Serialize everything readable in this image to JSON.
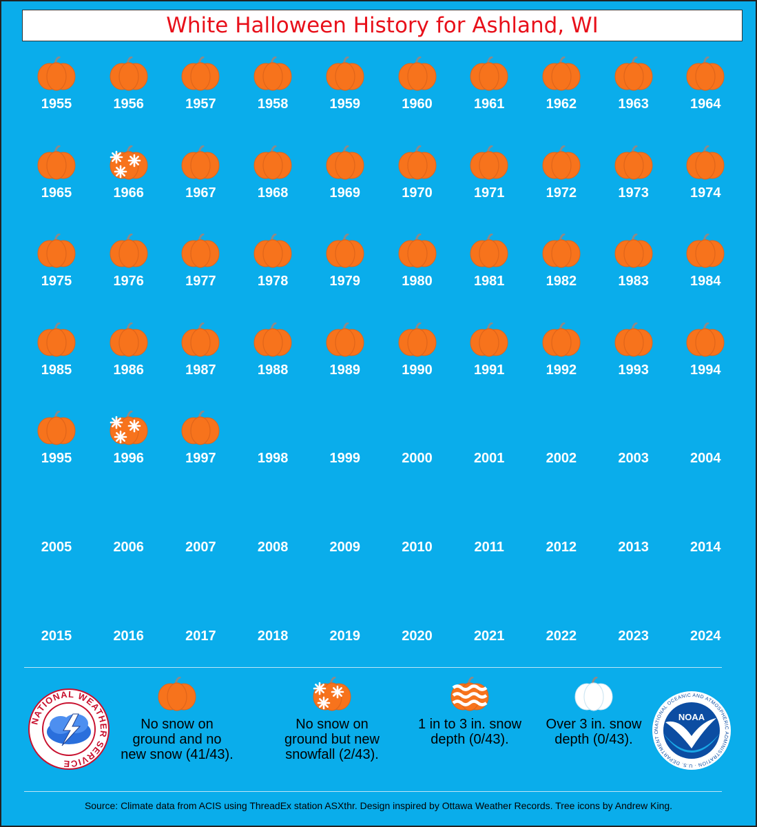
{
  "title": "White Halloween History for Ashland, WI",
  "chart_data": {
    "type": "table",
    "title": "White Halloween History for Ashland, WI",
    "years": [
      1955,
      1956,
      1957,
      1958,
      1959,
      1960,
      1961,
      1962,
      1963,
      1964,
      1965,
      1966,
      1967,
      1968,
      1969,
      1970,
      1971,
      1972,
      1973,
      1974,
      1975,
      1976,
      1977,
      1978,
      1979,
      1980,
      1981,
      1982,
      1983,
      1984,
      1985,
      1986,
      1987,
      1988,
      1989,
      1990,
      1991,
      1992,
      1993,
      1994,
      1995,
      1996,
      1997,
      1998,
      1999,
      2000,
      2001,
      2002,
      2003,
      2004,
      2005,
      2006,
      2007,
      2008,
      2009,
      2010,
      2011,
      2012,
      2013,
      2014,
      2015,
      2016,
      2017,
      2018,
      2019,
      2020,
      2021,
      2022,
      2023,
      2024
    ],
    "categories": [
      "none",
      "new_snow",
      "depth_1_3",
      "depth_over_3",
      "no_data"
    ],
    "status": [
      "none",
      "none",
      "none",
      "none",
      "none",
      "none",
      "none",
      "none",
      "none",
      "none",
      "none",
      "new_snow",
      "none",
      "none",
      "none",
      "none",
      "none",
      "none",
      "none",
      "none",
      "none",
      "none",
      "none",
      "none",
      "none",
      "none",
      "none",
      "none",
      "none",
      "none",
      "none",
      "none",
      "none",
      "none",
      "none",
      "none",
      "none",
      "none",
      "none",
      "none",
      "none",
      "new_snow",
      "none",
      "no_data",
      "no_data",
      "no_data",
      "no_data",
      "no_data",
      "no_data",
      "no_data",
      "no_data",
      "no_data",
      "no_data",
      "no_data",
      "no_data",
      "no_data",
      "no_data",
      "no_data",
      "no_data",
      "no_data",
      "no_data",
      "no_data",
      "no_data",
      "no_data",
      "no_data",
      "no_data",
      "no_data",
      "no_data",
      "no_data",
      "no_data"
    ]
  },
  "legend": [
    {
      "key": "none",
      "label": "No snow on ground and no new snow (41/43)."
    },
    {
      "key": "new_snow",
      "label": "No snow on ground but new snowfall (2/43)."
    },
    {
      "key": "depth_1_3",
      "label": "1 in to 3 in. snow depth (0/43)."
    },
    {
      "key": "depth_over_3",
      "label": "Over 3 in. snow depth (0/43)."
    }
  ],
  "logos": {
    "nws": "NATIONAL WEATHER SERVICE",
    "noaa": "NOAA",
    "noaa_ring": "NATIONAL OCEANIC AND ATMOSPHERIC ADMINISTRATION · U.S. DEPARTMENT OF COMMERCE"
  },
  "source": "Source: Climate data from ACIS using ThreadEx station ASXthr. Design inspired by Ottawa Weather Records. Tree icons by Andrew King.",
  "colors": {
    "background": "#0aadeb",
    "pumpkin": "#f7731c",
    "title": "#e8101a"
  }
}
